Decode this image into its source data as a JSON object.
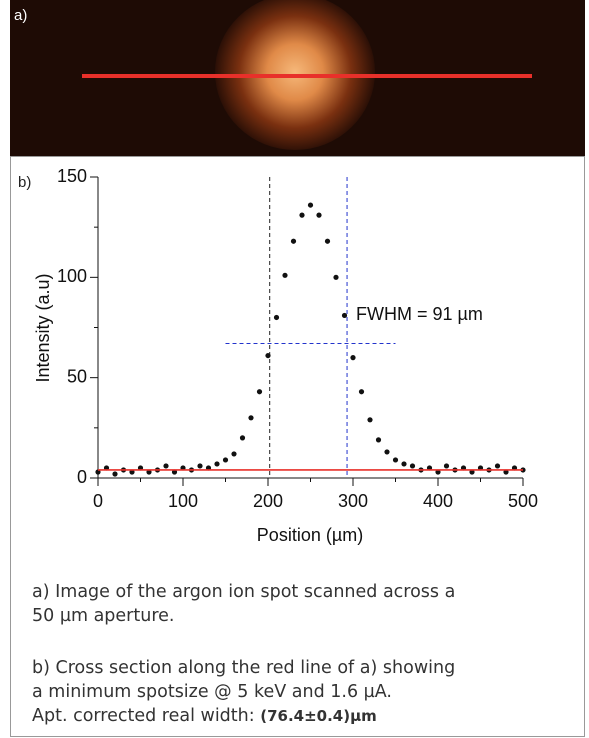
{
  "panel_a": {
    "label": "a)"
  },
  "chart_data": {
    "type": "scatter",
    "panel_label": "b)",
    "x_label": "Position (µm)",
    "y_label": "Intensity (a.u)",
    "annotation": "FWHM = 91 µm",
    "x": [
      0,
      10,
      20,
      30,
      40,
      50,
      60,
      70,
      80,
      90,
      100,
      110,
      120,
      130,
      140,
      150,
      160,
      170,
      180,
      190,
      200,
      210,
      220,
      230,
      240,
      250,
      260,
      270,
      280,
      290,
      300,
      310,
      320,
      330,
      340,
      350,
      360,
      370,
      380,
      390,
      400,
      410,
      420,
      430,
      440,
      450,
      460,
      470,
      480,
      490,
      500
    ],
    "series": [
      {
        "color": "#111111",
        "values": [
          3,
          5,
          2,
          4,
          3,
          5,
          3,
          4,
          6,
          3,
          5,
          4,
          6,
          5,
          7,
          9,
          12,
          20,
          30,
          43,
          61,
          80,
          101,
          118,
          131,
          136,
          131,
          118,
          100,
          81,
          60,
          43,
          29,
          19,
          13,
          9,
          7,
          6,
          4,
          5,
          3,
          6,
          4,
          5,
          3,
          5,
          4,
          6,
          3,
          5,
          4
        ]
      },
      {
        "color": "#e8302a",
        "style": "line",
        "values": [
          4,
          4,
          4,
          4,
          4,
          4,
          4,
          4,
          4,
          4,
          4,
          4,
          4,
          4,
          4,
          4,
          4,
          4,
          4,
          4,
          4,
          4,
          4,
          4,
          4,
          4,
          4,
          4,
          4,
          4,
          4,
          4,
          4,
          4,
          4,
          4,
          4,
          4,
          4,
          4,
          4,
          4,
          4,
          4,
          4,
          4,
          4,
          4,
          4,
          4,
          4
        ]
      }
    ],
    "fwhm_markers": {
      "x": [
        202,
        293
      ],
      "colors": [
        "#222222",
        "#2233cc"
      ],
      "y": 67,
      "hline_x": [
        150,
        350
      ]
    },
    "xlim": [
      0,
      500
    ],
    "ylim": [
      0,
      150
    ],
    "xticks": [
      0,
      100,
      200,
      300,
      400,
      500
    ],
    "yticks": [
      0,
      50,
      100,
      150
    ],
    "xticks_minor": [
      50,
      150,
      250,
      350,
      450
    ],
    "yticks_minor": [
      25,
      75,
      125
    ]
  },
  "caption": {
    "a": [
      "a) Image of the argon ion spot scanned across a",
      "50 µm aperture."
    ],
    "b": [
      "b) Cross section along the red line of a) showing",
      "a minimum spotsize @ 5 keV and 1.6 µA."
    ],
    "b_result_label": "Apt. corrected real width:",
    "b_result_value": "(76.4±0.4)µm"
  }
}
